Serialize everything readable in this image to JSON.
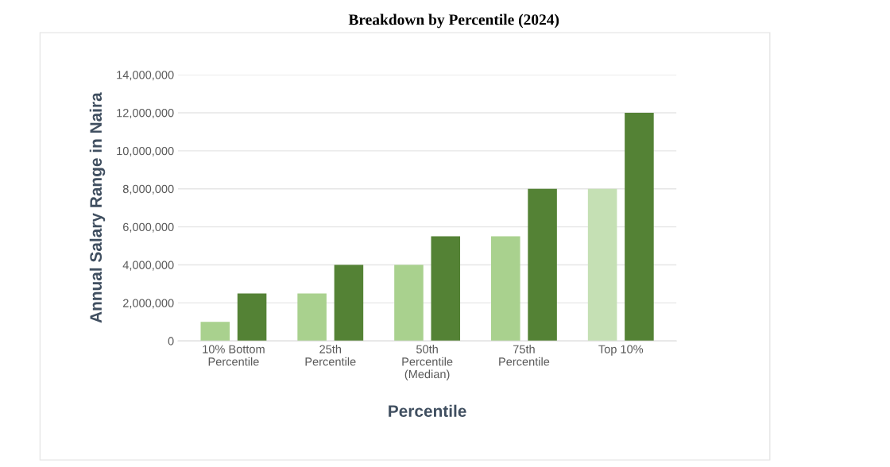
{
  "chart_data": {
    "type": "bar",
    "title": "Breakdown by Percentile (2024)",
    "xlabel": "Percentile",
    "ylabel": "Annual Salary Range in Naira",
    "categories": [
      "10% Bottom\nPercentile",
      "25th\nPercentile",
      "50th\nPercentile\n(Median)",
      "75th\nPercentile",
      "Top 10%"
    ],
    "series": [
      {
        "colors": [
          "#a9d18e",
          "#a9d18e",
          "#a9d18e",
          "#a9d18e",
          "#c5e0b4"
        ],
        "values": [
          1000000,
          2500000,
          4000000,
          5500000,
          8000000
        ]
      },
      {
        "color": "#548235",
        "values": [
          2500000,
          4000000,
          5500000,
          8000000,
          12000000
        ]
      }
    ],
    "ylim": [
      0,
      14000000
    ],
    "yticks": [
      {
        "value": 0,
        "label": "0"
      },
      {
        "value": 2000000,
        "label": "2,000,000"
      },
      {
        "value": 4000000,
        "label": "4,000,000"
      },
      {
        "value": 6000000,
        "label": "6,000,000"
      },
      {
        "value": 8000000,
        "label": "8,000,000"
      },
      {
        "value": 10000000,
        "label": "10,000,000"
      },
      {
        "value": 12000000,
        "label": "12,000,000"
      },
      {
        "value": 14000000,
        "label": "14,000,000"
      }
    ],
    "grid": "y",
    "legend": false
  }
}
